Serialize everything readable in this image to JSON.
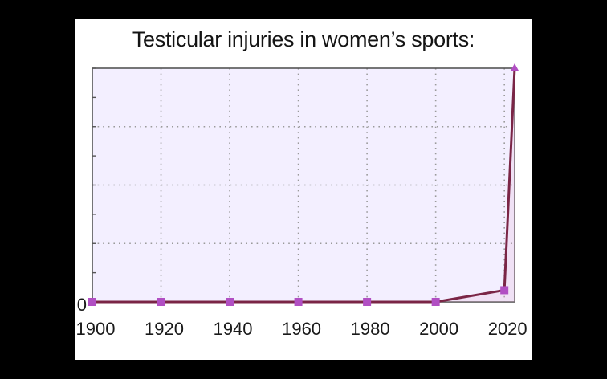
{
  "chart_data": {
    "type": "line",
    "title": "Testicular injuries in women’s sports:",
    "xlabel": "",
    "ylabel": "",
    "x": [
      1900,
      1920,
      1940,
      1960,
      1980,
      2000,
      2020,
      2023
    ],
    "series": [
      {
        "values": [
          0,
          0,
          0,
          0,
          0,
          0,
          0.2,
          4
        ]
      }
    ],
    "x_tick_labels": [
      "1900",
      "1920",
      "1940",
      "1960",
      "1980",
      "2000",
      "2020"
    ],
    "y_tick_labels": [
      "0"
    ],
    "xlim": [
      1900,
      2023
    ],
    "ylim": [
      0,
      4
    ],
    "grid": true,
    "colors": {
      "line": "#7a2546",
      "marker": "#b14fc3",
      "plot_background": "#f3efff",
      "grid": "#9a9a9a",
      "axis": "#555555"
    }
  }
}
